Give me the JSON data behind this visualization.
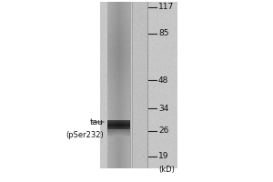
{
  "fig_width": 3.0,
  "fig_height": 2.0,
  "dpi": 100,
  "bg_color": "#ffffff",
  "mw_markers": [
    117,
    85,
    48,
    34,
    26,
    19
  ],
  "band_label": "tau",
  "band_sublabel": "(pSer232)",
  "kd_label": "(kD)"
}
